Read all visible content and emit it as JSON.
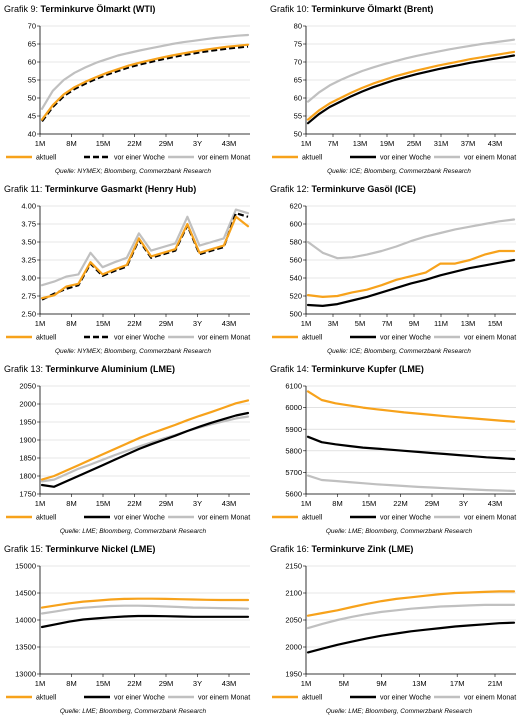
{
  "colors": {
    "aktuell": "#F7A21B",
    "woche": "#000000",
    "monat": "#C0C0C0"
  },
  "chart_data": [
    {
      "type": "line",
      "label": "Grafik 9:",
      "title": "Terminkurve Ölmarkt (WTI)",
      "source": "Quelle: NYMEX; Bloomberg, Commerzbank Research",
      "x_ticks": [
        "1M",
        "8M",
        "15M",
        "22M",
        "29M",
        "3Y",
        "43M"
      ],
      "y_ticks": [
        "40",
        "45",
        "50",
        "55",
        "60",
        "65",
        "70"
      ],
      "ylim": [
        40,
        70
      ],
      "woche_dashed": true,
      "series": [
        {
          "name": "aktuell",
          "values": [
            44,
            48,
            51,
            53,
            54.5,
            55.8,
            57,
            58,
            59,
            59.8,
            60.5,
            61.2,
            61.8,
            62.4,
            62.9,
            63.4,
            63.8,
            64.2,
            64.5,
            64.8
          ]
        },
        {
          "name": "vor einer Woche",
          "values": [
            43.5,
            47.5,
            50.5,
            52.5,
            54,
            55.3,
            56.5,
            57.5,
            58.5,
            59.3,
            60,
            60.7,
            61.3,
            61.9,
            62.4,
            62.9,
            63.3,
            63.7,
            64,
            64.3
          ]
        },
        {
          "name": "vor einem Monat",
          "values": [
            47,
            52,
            55,
            57,
            58.5,
            59.8,
            60.8,
            61.8,
            62.5,
            63.2,
            63.8,
            64.4,
            65,
            65.5,
            65.9,
            66.3,
            66.7,
            67,
            67.3,
            67.5
          ]
        }
      ]
    },
    {
      "type": "line",
      "label": "Grafik 10:",
      "title": "Terminkurve Ölmarkt (Brent)",
      "source": "Quelle: ICE; Bloomberg, Commerzbank Research",
      "x_ticks": [
        "1M",
        "7M",
        "13M",
        "19M",
        "25M",
        "31M",
        "37M",
        "43M"
      ],
      "y_ticks": [
        "50",
        "55",
        "60",
        "65",
        "70",
        "75",
        "80"
      ],
      "ylim": [
        50,
        80
      ],
      "woche_dashed": false,
      "series": [
        {
          "name": "aktuell",
          "values": [
            54,
            56.5,
            58.5,
            60,
            61.5,
            62.8,
            64,
            65,
            66,
            66.8,
            67.6,
            68.3,
            69,
            69.6,
            70.2,
            70.8,
            71.3,
            71.8,
            72.3,
            72.8
          ]
        },
        {
          "name": "vor einer Woche",
          "values": [
            53,
            55.5,
            57.5,
            59,
            60.5,
            61.8,
            63,
            64,
            65,
            65.8,
            66.6,
            67.3,
            68,
            68.6,
            69.2,
            69.8,
            70.3,
            70.8,
            71.3,
            71.8
          ]
        },
        {
          "name": "vor einem Monat",
          "values": [
            59,
            61.5,
            63.5,
            65,
            66.3,
            67.5,
            68.5,
            69.4,
            70.2,
            71,
            71.7,
            72.3,
            72.9,
            73.5,
            74,
            74.5,
            75,
            75.4,
            75.8,
            76.2
          ]
        }
      ]
    },
    {
      "type": "line",
      "label": "Grafik 11:",
      "title": "Terminkurve Gasmarkt (Henry Hub)",
      "source": "Quelle: NYMEX; Bloomberg, Commerzbank Research",
      "x_ticks": [
        "1M",
        "8M",
        "15M",
        "22M",
        "29M",
        "3Y",
        "43M"
      ],
      "y_ticks": [
        "2.50",
        "2.75",
        "3.00",
        "3.25",
        "3.50",
        "3.75",
        "4.00"
      ],
      "ylim": [
        2.5,
        4.0
      ],
      "woche_dashed": true,
      "series": [
        {
          "name": "aktuell",
          "values": [
            2.72,
            2.76,
            2.88,
            2.92,
            3.22,
            3.05,
            3.12,
            3.18,
            3.55,
            3.3,
            3.35,
            3.4,
            3.75,
            3.35,
            3.4,
            3.45,
            3.85,
            3.72
          ]
        },
        {
          "name": "vor einer Woche",
          "values": [
            2.7,
            2.78,
            2.85,
            2.9,
            3.2,
            3.03,
            3.1,
            3.16,
            3.53,
            3.28,
            3.33,
            3.38,
            3.73,
            3.33,
            3.38,
            3.43,
            3.9,
            3.85
          ]
        },
        {
          "name": "vor einem Monat",
          "values": [
            2.9,
            2.95,
            3.02,
            3.05,
            3.35,
            3.15,
            3.22,
            3.28,
            3.62,
            3.38,
            3.43,
            3.48,
            3.85,
            3.45,
            3.5,
            3.55,
            3.95,
            3.9
          ]
        }
      ]
    },
    {
      "type": "line",
      "label": "Grafik 12:",
      "title": "Terminkurve Gasöl (ICE)",
      "source": "Quelle: ICE; Bloomberg, Commerzbank Research",
      "x_ticks": [
        "1M",
        "3M",
        "5M",
        "7M",
        "9M",
        "11M",
        "13M",
        "15M"
      ],
      "y_ticks": [
        "500",
        "520",
        "540",
        "560",
        "580",
        "600",
        "620"
      ],
      "ylim": [
        500,
        620
      ],
      "woche_dashed": false,
      "series": [
        {
          "name": "aktuell",
          "values": [
            521,
            519,
            520,
            524,
            527,
            532,
            538,
            542,
            546,
            556,
            556,
            560,
            566,
            570,
            570
          ]
        },
        {
          "name": "vor einer Woche",
          "values": [
            510,
            509,
            511,
            515,
            519,
            524,
            529,
            534,
            538,
            543,
            547,
            551,
            554,
            557,
            560
          ]
        },
        {
          "name": "vor einem Monat",
          "values": [
            580,
            568,
            562,
            563,
            566,
            570,
            575,
            581,
            586,
            590,
            594,
            597,
            600,
            603,
            605
          ]
        }
      ]
    },
    {
      "type": "line",
      "label": "Grafik 13:",
      "title": "Terminkurve Aluminium (LME)",
      "source": "Quelle: LME; Bloomberg, Commerzbank Research",
      "x_ticks": [
        "1M",
        "8M",
        "15M",
        "22M",
        "29M",
        "3Y",
        "43M"
      ],
      "y_ticks": [
        "1750",
        "1800",
        "1850",
        "1900",
        "1950",
        "2000",
        "2050"
      ],
      "ylim": [
        1750,
        2050
      ],
      "woche_dashed": false,
      "series": [
        {
          "name": "aktuell",
          "values": [
            1790,
            1800,
            1815,
            1830,
            1845,
            1860,
            1875,
            1890,
            1905,
            1918,
            1930,
            1942,
            1955,
            1967,
            1978,
            1990,
            2002,
            2010
          ]
        },
        {
          "name": "vor einer Woche",
          "values": [
            1775,
            1770,
            1785,
            1800,
            1815,
            1830,
            1845,
            1860,
            1875,
            1888,
            1900,
            1912,
            1925,
            1937,
            1948,
            1958,
            1968,
            1975
          ]
        },
        {
          "name": "vor einem Monat",
          "values": [
            1785,
            1790,
            1805,
            1820,
            1832,
            1845,
            1858,
            1870,
            1882,
            1893,
            1904,
            1914,
            1925,
            1935,
            1944,
            1952,
            1960,
            1965
          ]
        }
      ]
    },
    {
      "type": "line",
      "label": "Grafik 14:",
      "title": "Terminkurve Kupfer (LME)",
      "source": "Quelle: LME; Bloomberg, Commerzbank Research",
      "x_ticks": [
        "1M",
        "8M",
        "15M",
        "22M",
        "29M",
        "3Y",
        "43M"
      ],
      "y_ticks": [
        "5600",
        "5700",
        "5800",
        "5900",
        "6000",
        "6100"
      ],
      "ylim": [
        5600,
        6100
      ],
      "woche_dashed": false,
      "series": [
        {
          "name": "aktuell",
          "values": [
            6075,
            6035,
            6020,
            6010,
            6000,
            5992,
            5985,
            5978,
            5972,
            5966,
            5960,
            5955,
            5950,
            5945,
            5940,
            5935
          ]
        },
        {
          "name": "vor einer Woche",
          "values": [
            5865,
            5840,
            5830,
            5822,
            5815,
            5810,
            5805,
            5800,
            5795,
            5790,
            5785,
            5780,
            5775,
            5770,
            5766,
            5762
          ]
        },
        {
          "name": "vor einem Monat",
          "values": [
            5685,
            5665,
            5660,
            5655,
            5650,
            5645,
            5641,
            5637,
            5633,
            5630,
            5627,
            5624,
            5621,
            5618,
            5616,
            5614
          ]
        }
      ]
    },
    {
      "type": "line",
      "label": "Grafik 15:",
      "title": "Terminkurve Nickel (LME)",
      "source": "Quelle: LME; Bloomberg, Commerzbank Research",
      "x_ticks": [
        "1M",
        "8M",
        "15M",
        "22M",
        "29M",
        "3Y",
        "43M"
      ],
      "y_ticks": [
        "13000",
        "13500",
        "14000",
        "14500",
        "15000"
      ],
      "ylim": [
        13000,
        15000
      ],
      "woche_dashed": false,
      "series": [
        {
          "name": "aktuell",
          "values": [
            14230,
            14270,
            14310,
            14340,
            14360,
            14380,
            14390,
            14395,
            14395,
            14390,
            14385,
            14380,
            14375,
            14370,
            14370,
            14370
          ]
        },
        {
          "name": "vor einer Woche",
          "values": [
            13870,
            13920,
            13970,
            14010,
            14030,
            14050,
            14065,
            14075,
            14075,
            14070,
            14065,
            14060,
            14060,
            14060,
            14060,
            14060
          ]
        },
        {
          "name": "vor einem Monat",
          "values": [
            14120,
            14160,
            14200,
            14225,
            14245,
            14260,
            14265,
            14265,
            14260,
            14250,
            14240,
            14230,
            14225,
            14220,
            14215,
            14210
          ]
        }
      ]
    },
    {
      "type": "line",
      "label": "Grafik 16:",
      "title": "Terminkurve Zink (LME)",
      "source": "Quelle: LME; Bloomberg, Commerzbank Research",
      "x_ticks": [
        "1M",
        "5M",
        "9M",
        "13M",
        "17M",
        "21M"
      ],
      "y_ticks": [
        "1950",
        "2000",
        "2050",
        "2100",
        "2150"
      ],
      "ylim": [
        1950,
        2150
      ],
      "woche_dashed": false,
      "series": [
        {
          "name": "aktuell",
          "values": [
            2058,
            2063,
            2068,
            2074,
            2080,
            2085,
            2089,
            2092,
            2095,
            2098,
            2100,
            2101,
            2102,
            2103,
            2103
          ]
        },
        {
          "name": "vor einer Woche",
          "values": [
            1990,
            1997,
            2004,
            2010,
            2016,
            2021,
            2025,
            2029,
            2032,
            2035,
            2038,
            2040,
            2042,
            2044,
            2045
          ]
        },
        {
          "name": "vor einem Monat",
          "values": [
            2035,
            2043,
            2050,
            2056,
            2061,
            2065,
            2068,
            2071,
            2073,
            2075,
            2076,
            2077,
            2078,
            2078,
            2078
          ]
        }
      ]
    }
  ]
}
